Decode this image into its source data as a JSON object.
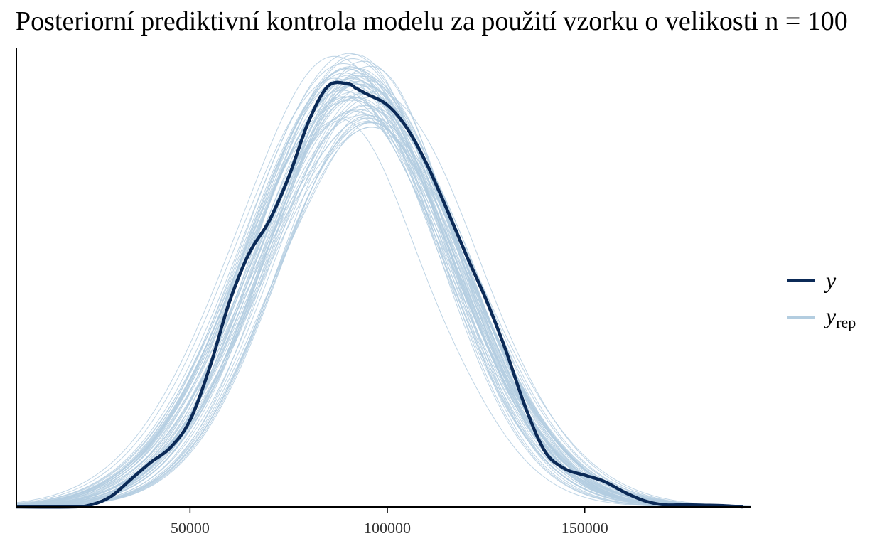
{
  "title": "Posteriorní prediktivní kontrola modelu za použití vzorku o velikosti n = 100",
  "legend": {
    "y_label": "y",
    "yrep_base": "y",
    "yrep_sub": "rep"
  },
  "colors": {
    "y": "#0b2a57",
    "yrep": "#b3cde0",
    "axis": "#000000"
  },
  "chart_data": {
    "type": "line",
    "title": "Posteriorní prediktivní kontrola modelu za použití vzorku o velikosti n = 100",
    "xlabel": "",
    "ylabel": "",
    "xlim": [
      6000,
      192000
    ],
    "ylim": [
      0,
      1.08
    ],
    "xticks": [
      50000,
      100000,
      150000
    ],
    "xtick_labels": [
      "50000",
      "100000",
      "150000"
    ],
    "y_ticks_shown": false,
    "grid": false,
    "legend_position": "right",
    "n_replicates": 60,
    "series": [
      {
        "name": "y",
        "role": "observed",
        "x": [
          6000,
          20000,
          25000,
          30000,
          35000,
          40000,
          45000,
          50000,
          55000,
          60000,
          65000,
          70000,
          75000,
          80000,
          85000,
          90000,
          92000,
          95000,
          100000,
          105000,
          110000,
          115000,
          120000,
          125000,
          130000,
          135000,
          140000,
          145000,
          150000,
          155000,
          160000,
          165000,
          170000,
          175000,
          180000,
          185000,
          190000
        ],
        "y": [
          0.0,
          0.0,
          0.005,
          0.025,
          0.065,
          0.105,
          0.14,
          0.205,
          0.33,
          0.485,
          0.6,
          0.675,
          0.78,
          0.91,
          0.995,
          1.0,
          0.99,
          0.975,
          0.95,
          0.895,
          0.81,
          0.705,
          0.595,
          0.49,
          0.37,
          0.235,
          0.13,
          0.09,
          0.075,
          0.06,
          0.035,
          0.015,
          0.005,
          0.005,
          0.004,
          0.003,
          0.0
        ]
      }
    ],
    "replicate_series": {
      "name": "yrep",
      "description_mean": "normal-like densities centered near 95000, sd about 26000, peaks 0.88-1.08"
    }
  }
}
